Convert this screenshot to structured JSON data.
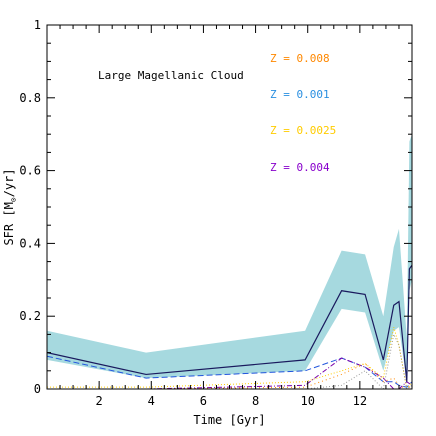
{
  "chart_data": {
    "type": "line",
    "xlabel": "Time [Gyr]",
    "ylabel": "SFR [M",
    "ylabel_sub": "⊙",
    "ylabel_end": "/yr]",
    "xlim": [
      0,
      14
    ],
    "ylim": [
      0,
      1
    ],
    "xticks": [
      2,
      4,
      6,
      8,
      10,
      12
    ],
    "yticks": [
      0,
      0.2,
      0.4,
      0.6,
      0.8,
      1
    ],
    "ytick_labels": [
      "0",
      "0.2",
      "0.4",
      "0.6",
      "0.8",
      "1"
    ],
    "grid": false,
    "annotation": "Large Magellanic Cloud",
    "band": {
      "color": "#a6d9df",
      "x": [
        0,
        3.8,
        9.9,
        11.3,
        12.2,
        12.9,
        13.3,
        13.5,
        13.8,
        13.9,
        14.0
      ],
      "upper": [
        0.16,
        0.1,
        0.16,
        0.38,
        0.37,
        0.2,
        0.39,
        0.44,
        0.14,
        0.68,
        0.7
      ],
      "lower": [
        0.08,
        0.03,
        0.05,
        0.22,
        0.21,
        0.05,
        0.16,
        0.17,
        0.02,
        0.27,
        0.3
      ]
    },
    "series": [
      {
        "key": "total",
        "color": "#1a1a5e",
        "dash": "",
        "x": [
          0,
          3.8,
          9.9,
          11.3,
          12.2,
          12.9,
          13.3,
          13.5,
          13.8,
          13.9,
          14.0
        ],
        "y": [
          0.1,
          0.04,
          0.08,
          0.27,
          0.26,
          0.08,
          0.23,
          0.24,
          0.02,
          0.33,
          0.34
        ]
      },
      {
        "key": "z0.001",
        "name": "Z = 0.001",
        "color": "#2255dd",
        "dash": "6,3",
        "x": [
          0,
          3.8,
          9.9,
          11.3,
          12.2,
          12.9,
          13.3,
          13.5,
          13.8,
          14.0
        ],
        "y": [
          0.09,
          0.03,
          0.05,
          0.085,
          0.06,
          0.02,
          0.02,
          0.01,
          0.005,
          0.02
        ]
      },
      {
        "key": "z0.004",
        "name": "Z = 0.004",
        "color": "#7700aa",
        "dash": "5,2,1,2",
        "x": [
          0,
          3.8,
          9.9,
          11.3,
          12.2,
          12.9,
          13.3,
          13.5,
          13.8,
          14.0
        ],
        "y": [
          0.0,
          0.0,
          0.01,
          0.085,
          0.06,
          0.03,
          0.0,
          0.0,
          0.02,
          0.01
        ]
      },
      {
        "key": "z0.008",
        "name": "Z = 0.008",
        "color": "#ff8800",
        "dash": "1,3",
        "x": [
          0,
          3.8,
          9.9,
          11.3,
          12.2,
          12.9,
          13.3,
          13.5,
          13.8,
          14.0
        ],
        "y": [
          0.0,
          0.0,
          0.005,
          0.04,
          0.07,
          0.02,
          0.03,
          0.01,
          0.0,
          0.01
        ]
      },
      {
        "key": "z0.0025",
        "name": "Z = 0.0025",
        "color": "#ffcc00",
        "dash": "1,2",
        "x": [
          0,
          3.8,
          9.9,
          11.3,
          12.2,
          12.9,
          13.3,
          13.5,
          13.8,
          14.0
        ],
        "y": [
          0.005,
          0.005,
          0.02,
          0.05,
          0.07,
          0.03,
          0.17,
          0.12,
          0.0,
          0.02
        ]
      },
      {
        "key": "grey",
        "color": "#999999",
        "dash": "1,2",
        "x": [
          9.9,
          11.3,
          12.2,
          12.9,
          13.3,
          13.5,
          13.8,
          14.0
        ],
        "y": [
          0.0,
          0.01,
          0.05,
          0.0,
          0.15,
          0.12,
          0.0,
          0.01
        ]
      }
    ],
    "legend": [
      {
        "text": "Z = 0.008",
        "color": "#ff8800"
      },
      {
        "text": "Z = 0.001",
        "color": "#2a8fe0"
      },
      {
        "text": "Z = 0.0025",
        "color": "#ffcc00"
      },
      {
        "text": "Z = 0.004",
        "color": "#8800cc"
      }
    ],
    "legend_placement": "top-right"
  }
}
